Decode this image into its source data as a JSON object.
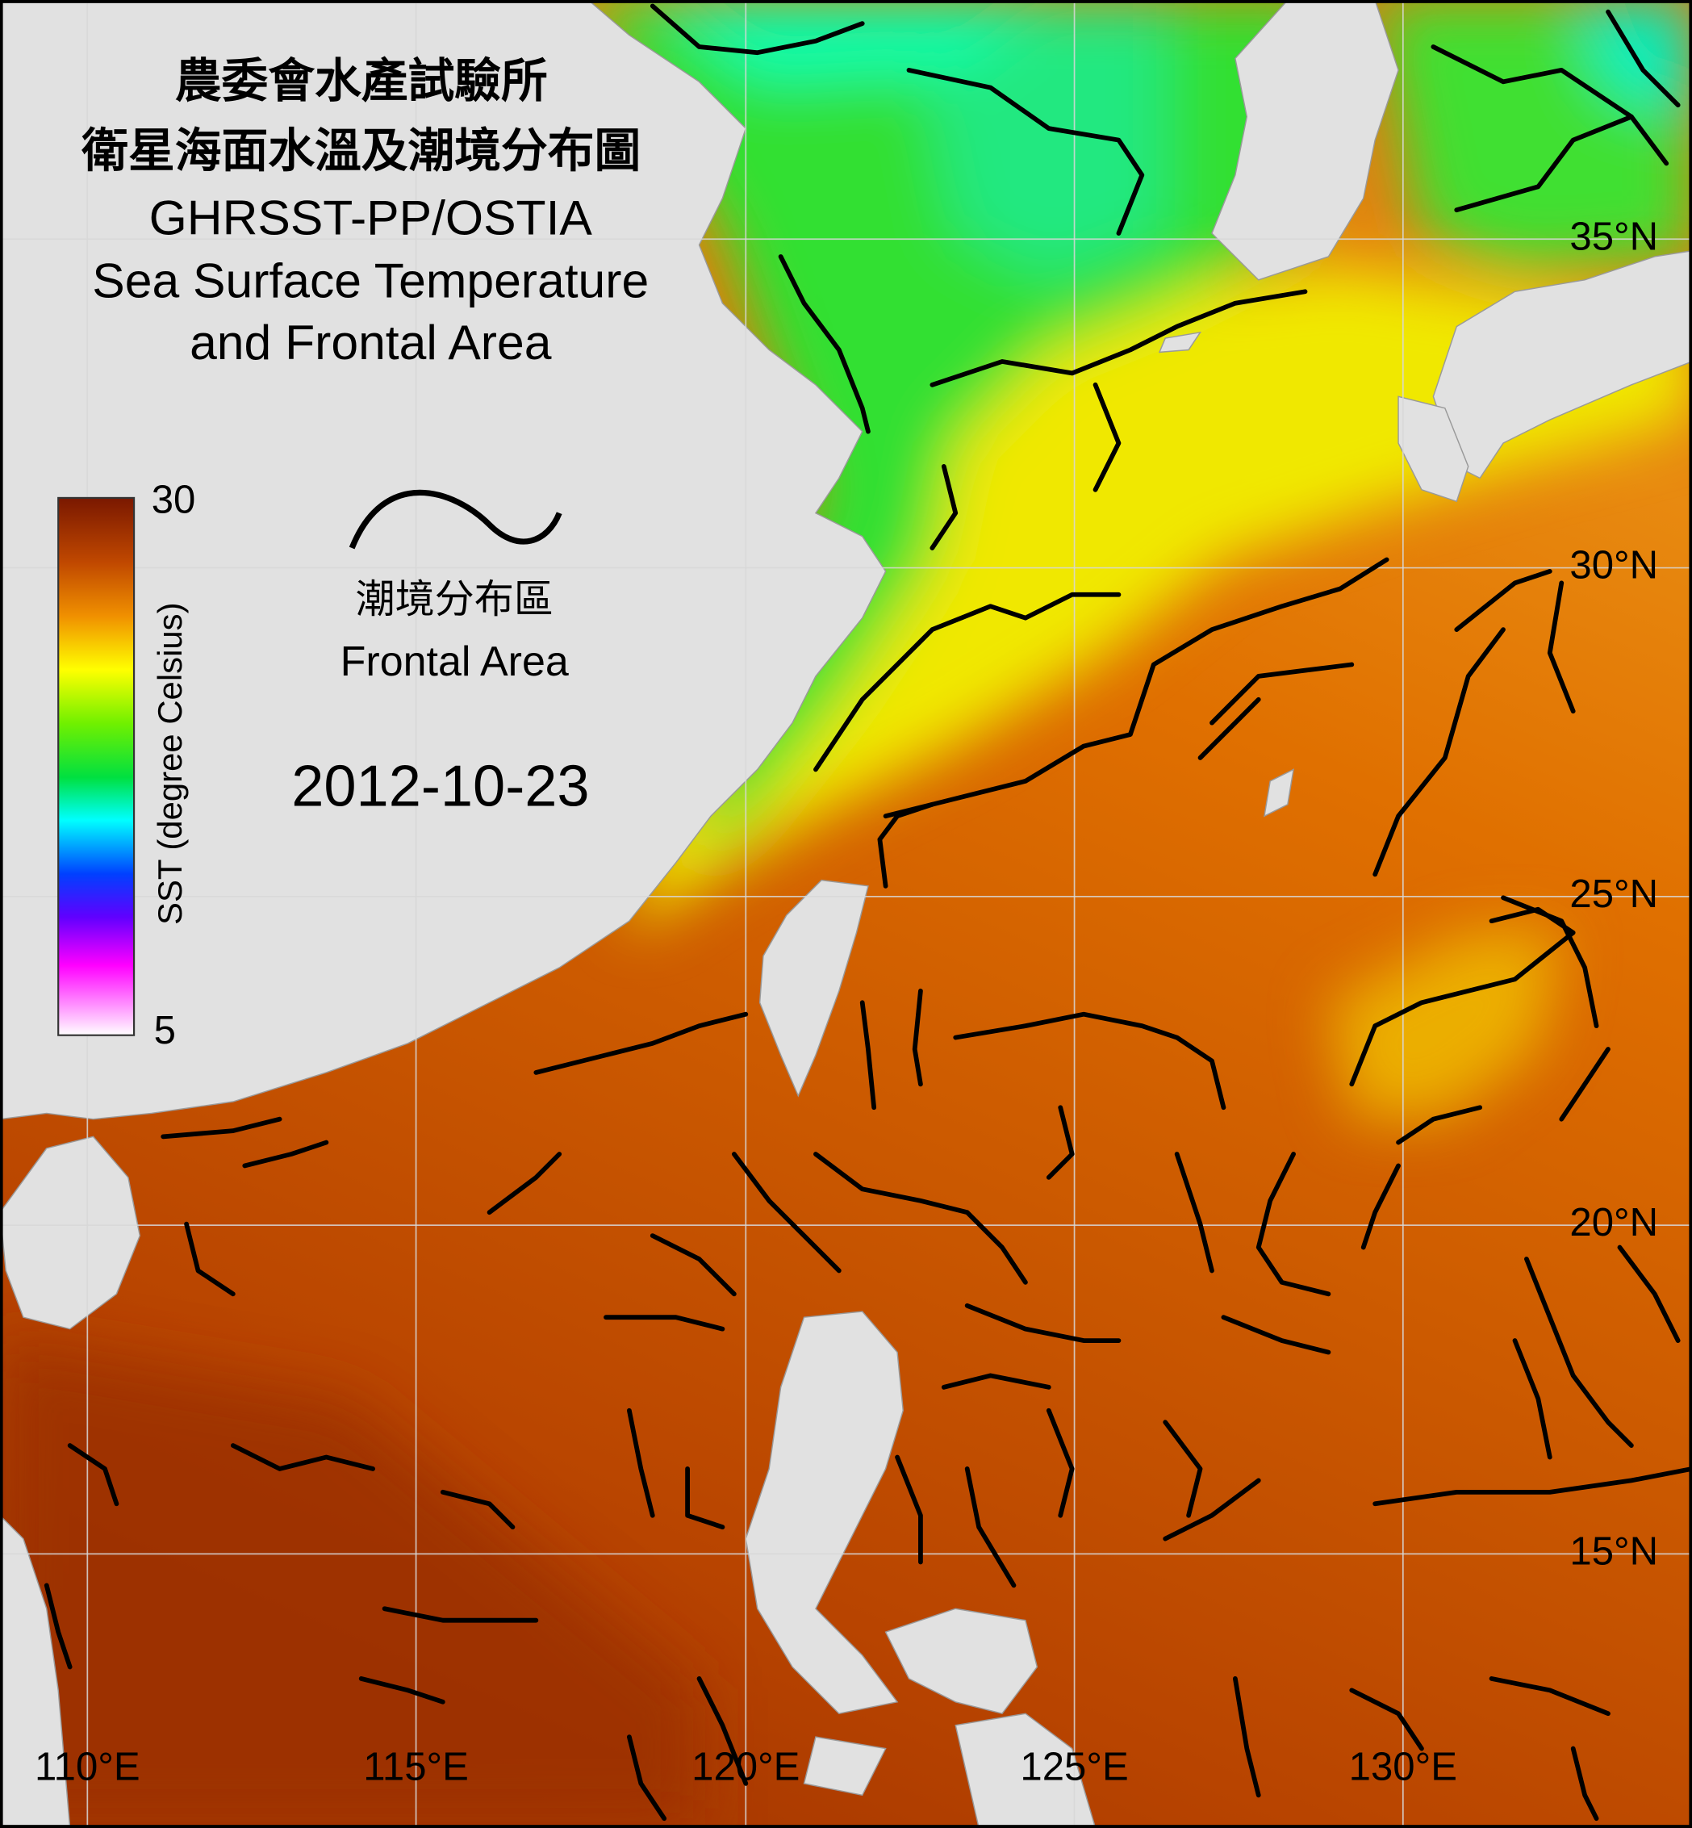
{
  "title_zh": [
    "農委會水產試驗所",
    "衛星海面水溫及潮境分布圖"
  ],
  "title_en": [
    "GHRSST-PP/OSTIA",
    "Sea Surface Temperature",
    "and Frontal Area"
  ],
  "colorbar": {
    "label": "SST (degree Celsius)",
    "max": 30,
    "min": 5
  },
  "legend": {
    "label_zh": "潮境分布區",
    "label_en": "Frontal Area"
  },
  "date": "2012-10-23",
  "lat_labels": [
    "35°N",
    "30°N",
    "25°N",
    "20°N",
    "15°N"
  ],
  "lon_labels": [
    "110°E",
    "115°E",
    "120°E",
    "125°E",
    "130°E"
  ]
}
